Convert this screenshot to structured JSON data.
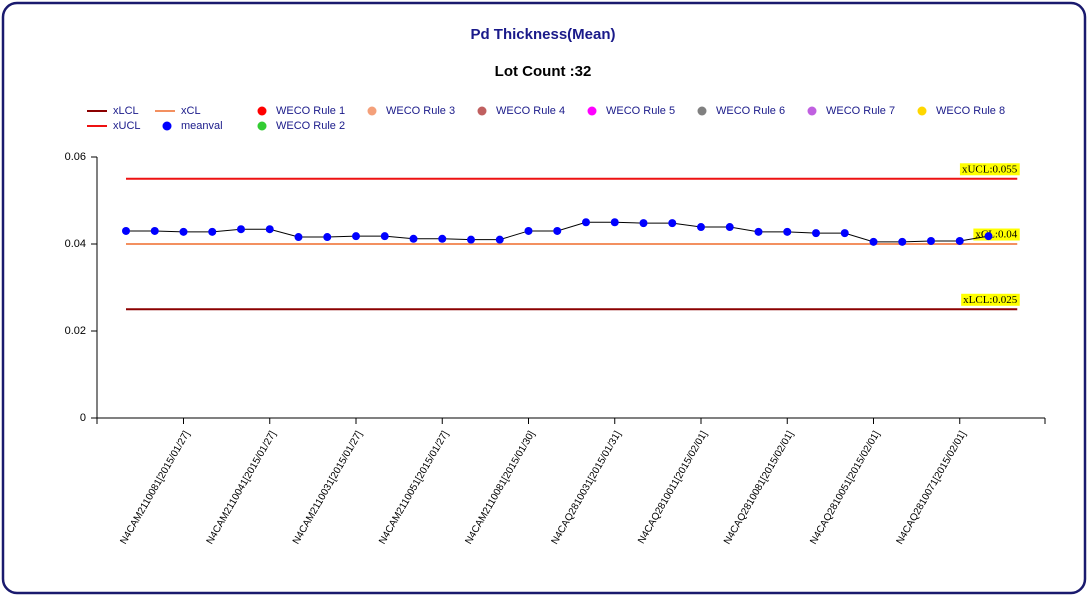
{
  "chart_data": {
    "type": "line",
    "title": "Pd Thickness(Mean)",
    "subtitle": "Lot Count :32",
    "categories": [
      null,
      null,
      "N4CAM2110081[2015/01/27]",
      null,
      null,
      "N4CAM2110041[2015/01/27]",
      null,
      null,
      "N4CAM2110031[2015/01/27]",
      null,
      null,
      "N4CAM2110051[2015/01/27]",
      null,
      null,
      "N4CAM2110081[2015/01/30]",
      null,
      null,
      "N4CAQ2810031[2015/01/31]",
      null,
      null,
      "N4CAQ2810011[2015/02/01]",
      null,
      null,
      "N4CAQ2810081[2015/02/01]",
      null,
      null,
      "N4CAQ2810051[2015/02/01]",
      null,
      null,
      "N4CAQ2810071[2015/02/01]",
      null
    ],
    "series": [
      {
        "name": "meanval",
        "color": "#0000ff",
        "values": [
          0.043,
          0.043,
          0.0428,
          0.0428,
          0.0434,
          0.0434,
          0.0416,
          0.0416,
          0.0418,
          0.0418,
          0.0412,
          0.0412,
          0.041,
          0.041,
          0.043,
          0.043,
          0.045,
          0.045,
          0.0448,
          0.0448,
          0.0439,
          0.0439,
          0.0428,
          0.0428,
          0.0425,
          0.0425,
          0.0405,
          0.0405,
          0.0407,
          0.0407,
          0.0418
        ]
      }
    ],
    "limits": [
      {
        "name": "xLCL",
        "value": 0.025,
        "label": "xLCL:0.025",
        "color": "#8b0000"
      },
      {
        "name": "xUCL",
        "value": 0.055,
        "label": "xUCL:0.055",
        "color": "#ee1111"
      },
      {
        "name": "xCL",
        "value": 0.04,
        "label": "xCL:0.04",
        "color": "#f39060"
      }
    ],
    "rules": [
      {
        "name": "WECO Rule 1",
        "color": "#ff0000"
      },
      {
        "name": "WECO Rule 2",
        "color": "#33cc33"
      },
      {
        "name": "WECO Rule 3",
        "color": "#f4a07a"
      },
      {
        "name": "WECO Rule 4",
        "color": "#c06060"
      },
      {
        "name": "WECO Rule 5",
        "color": "#ff00ff"
      },
      {
        "name": "WECO Rule 6",
        "color": "#808080"
      },
      {
        "name": "WECO Rule 7",
        "color": "#c060e0"
      },
      {
        "name": "WECO Rule 8",
        "color": "#ffd700"
      }
    ],
    "ylim": [
      0,
      0.06
    ],
    "yticks": [
      0,
      0.02,
      0.04,
      0.06
    ]
  }
}
